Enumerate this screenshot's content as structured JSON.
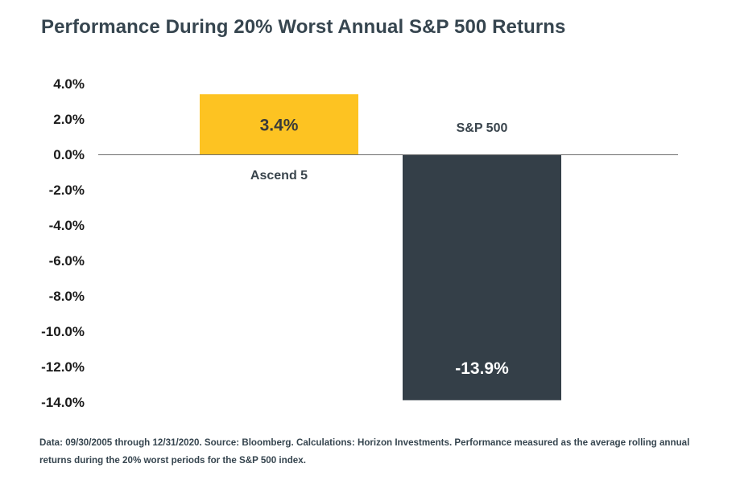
{
  "chart_data": {
    "type": "bar",
    "title": "Performance During 20% Worst Annual S&P 500 Returns",
    "categories": [
      "Ascend 5",
      "S&P 500"
    ],
    "values": [
      3.4,
      -13.9
    ],
    "data_labels": [
      "3.4%",
      "-13.9%"
    ],
    "colors": [
      "#fdc322",
      "#343f48"
    ],
    "data_label_colors": [
      "#3a3a3a",
      "#ffffff"
    ],
    "ylim": [
      -14,
      4
    ],
    "yticks": [
      4,
      2,
      0,
      -2,
      -4,
      -6,
      -8,
      -10,
      -12,
      -14
    ],
    "ytick_labels": [
      "4.0%",
      "2.0%",
      "0.0%",
      "-2.0%",
      "-4.0%",
      "-6.0%",
      "-8.0%",
      "-10.0%",
      "-12.0%",
      "-14.0%"
    ],
    "xlabel": "",
    "ylabel": "",
    "grid": false,
    "legend": "none",
    "category_label_placement": "opposite side of bar from zero line"
  },
  "footnote": "Data: 09/30/2005 through 12/31/2020. Source: Bloomberg. Calculations: Horizon Investments. Performance measured as the average rolling annual returns during the 20% worst periods for the S&P 500 index."
}
